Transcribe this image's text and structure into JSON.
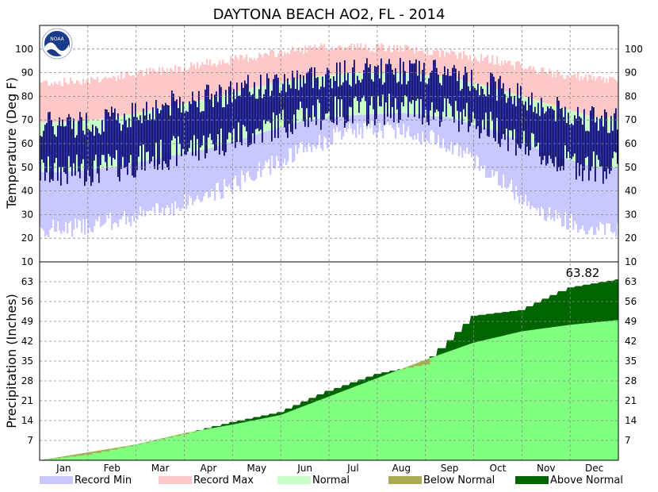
{
  "chart_data": [
    {
      "type": "bar",
      "panel": "temperature",
      "title": "DAYTONA BEACH AO2, FL - 2014",
      "ylabel": "Temperature (Deg F)",
      "ylim": [
        10,
        110
      ],
      "yticks": [
        10,
        20,
        30,
        40,
        50,
        60,
        70,
        80,
        90,
        100
      ],
      "months": [
        "Jan",
        "Feb",
        "Mar",
        "Apr",
        "May",
        "Jun",
        "Jul",
        "Aug",
        "Sep",
        "Oct",
        "Nov",
        "Dec"
      ],
      "grid": true,
      "normal_high_monthly": [
        69,
        71,
        75,
        79,
        84,
        88,
        90,
        90,
        88,
        83,
        77,
        71
      ],
      "normal_low_monthly": [
        48,
        50,
        54,
        58,
        64,
        70,
        72,
        73,
        71,
        65,
        56,
        50
      ],
      "record_high_monthly": [
        86,
        88,
        91,
        94,
        97,
        100,
        101,
        100,
        98,
        95,
        90,
        87
      ],
      "record_low_monthly": [
        24,
        27,
        32,
        38,
        48,
        58,
        66,
        66,
        60,
        45,
        30,
        24
      ],
      "actual_high_monthly": [
        68,
        70,
        76,
        80,
        84,
        88,
        90,
        91,
        89,
        84,
        75,
        70
      ],
      "actual_low_monthly": [
        48,
        50,
        55,
        60,
        65,
        72,
        74,
        75,
        73,
        66,
        54,
        50
      ]
    },
    {
      "type": "area",
      "panel": "precipitation",
      "ylabel": "Precipitation (Inches)",
      "ylim": [
        0,
        70
      ],
      "yticks": [
        7,
        14,
        21,
        28,
        35,
        42,
        49,
        56,
        63
      ],
      "annual_total_label": "63.82",
      "normal_cumulative_monthly": [
        0,
        2.8,
        5.6,
        9.6,
        12.6,
        16.0,
        22.5,
        29.0,
        35.5,
        41.5,
        45.5,
        47.8,
        49.5
      ],
      "actual_cumulative_monthly": [
        0,
        2.0,
        5.5,
        9.2,
        13.5,
        17.0,
        24.5,
        30.5,
        33.8,
        51.0,
        53.0,
        61.0,
        63.82
      ]
    }
  ],
  "legend": [
    {
      "label": "Record Min",
      "color": "#c8c8ff"
    },
    {
      "label": "Record Max",
      "color": "#ffc8c8"
    },
    {
      "label": "Normal",
      "color": "#c8ffc8"
    },
    {
      "label": "Below Normal",
      "color": "#aaaa55"
    },
    {
      "label": "Above Normal",
      "color": "#006400"
    }
  ],
  "colors": {
    "actual_temp": "#000066",
    "normal_precip": "#80ff80",
    "above_normal": "#006400",
    "below_normal": "#aaaa55"
  }
}
